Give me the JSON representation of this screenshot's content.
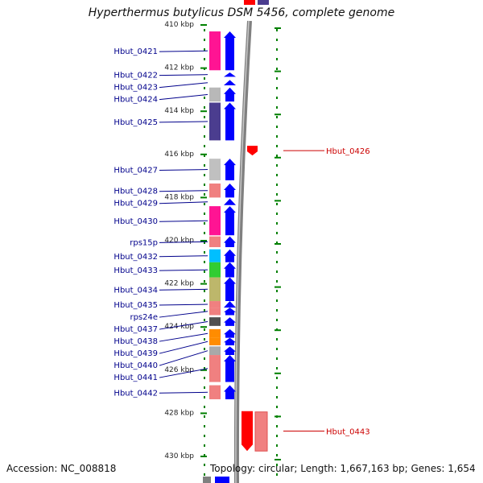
{
  "title": "Hyperthermus butylicus DSM 5456, complete genome",
  "footer": {
    "accession": "Accession: NC_008818",
    "topology": "Topology: circular; Length: 1,667,163 bp; Genes: 1,654"
  },
  "colors": {
    "forward_arrow": "#0000ff",
    "reverse_gene": "#ff0000",
    "label_forward": "#00008b",
    "label_reverse": "#cc0000",
    "tick_green": "#008000",
    "backbone": "#808080"
  },
  "scale": {
    "start_kbp": 410,
    "end_kbp": 430,
    "ticks": [
      {
        "kbp": 410,
        "label": "410 kbp"
      },
      {
        "kbp": 412,
        "label": "412 kbp"
      },
      {
        "kbp": 414,
        "label": "414 kbp"
      },
      {
        "kbp": 416,
        "label": "416 kbp"
      },
      {
        "kbp": 418,
        "label": "418 kbp"
      },
      {
        "kbp": 420,
        "label": "420 kbp"
      },
      {
        "kbp": 422,
        "label": "422 kbp"
      },
      {
        "kbp": 424,
        "label": "424 kbp"
      },
      {
        "kbp": 426,
        "label": "426 kbp"
      },
      {
        "kbp": 428,
        "label": "428 kbp"
      },
      {
        "kbp": 430,
        "label": "430 kbp"
      }
    ]
  },
  "genes": [
    {
      "name": "Hbut_0421",
      "start_kbp": 410.3,
      "end_kbp": 412.1,
      "strand": "+",
      "color": "#ff1493"
    },
    {
      "name": "Hbut_0422",
      "start_kbp": 412.2,
      "end_kbp": 412.4,
      "strand": "+",
      "color": "#ffffff"
    },
    {
      "name": "Hbut_0423",
      "start_kbp": 412.55,
      "end_kbp": 412.8,
      "strand": "+",
      "color": "#ffffff"
    },
    {
      "name": "Hbut_0424",
      "start_kbp": 412.9,
      "end_kbp": 413.55,
      "strand": "+",
      "color": "#b8b8b8"
    },
    {
      "name": "Hbut_0425",
      "start_kbp": 413.6,
      "end_kbp": 415.35,
      "strand": "+",
      "color": "#4b3d8f"
    },
    {
      "name": "Hbut_0426",
      "start_kbp": 415.6,
      "end_kbp": 416.05,
      "strand": "-",
      "color": "#ff0000"
    },
    {
      "name": "Hbut_0427",
      "start_kbp": 416.2,
      "end_kbp": 417.2,
      "strand": "+",
      "color": "#c0c0c0"
    },
    {
      "name": "Hbut_0428",
      "start_kbp": 417.35,
      "end_kbp": 418.0,
      "strand": "+",
      "color": "#f08080"
    },
    {
      "name": "Hbut_0429",
      "start_kbp": 418.05,
      "end_kbp": 418.35,
      "strand": "+",
      "color": "#ffffff"
    },
    {
      "name": "Hbut_0430",
      "start_kbp": 418.4,
      "end_kbp": 419.75,
      "strand": "+",
      "color": "#ff1493"
    },
    {
      "name": "rps15p",
      "start_kbp": 419.8,
      "end_kbp": 420.3,
      "strand": "+",
      "color": "#f08080"
    },
    {
      "name": "Hbut_0432",
      "start_kbp": 420.4,
      "end_kbp": 421.0,
      "strand": "+",
      "color": "#00bfff"
    },
    {
      "name": "Hbut_0433",
      "start_kbp": 421.0,
      "end_kbp": 421.7,
      "strand": "+",
      "color": "#32cd32"
    },
    {
      "name": "Hbut_0434",
      "start_kbp": 421.7,
      "end_kbp": 422.8,
      "strand": "+",
      "color": "#bdb76b"
    },
    {
      "name": "Hbut_0435",
      "start_kbp": 422.8,
      "end_kbp": 423.1,
      "strand": "+",
      "color": "#f08080"
    },
    {
      "name": "rps24e",
      "start_kbp": 423.1,
      "end_kbp": 423.45,
      "strand": "+",
      "color": "#f08080"
    },
    {
      "name": "Hbut_0437",
      "start_kbp": 423.55,
      "end_kbp": 423.95,
      "strand": "+",
      "color": "#505050"
    },
    {
      "name": "Hbut_0438",
      "start_kbp": 424.1,
      "end_kbp": 424.5,
      "strand": "+",
      "color": "#ff8c00"
    },
    {
      "name": "Hbut_0439",
      "start_kbp": 424.5,
      "end_kbp": 424.85,
      "strand": "+",
      "color": "#ff8c00"
    },
    {
      "name": "Hbut_0440",
      "start_kbp": 424.9,
      "end_kbp": 425.3,
      "strand": "+",
      "color": "#a9a9a9"
    },
    {
      "name": "Hbut_0441",
      "start_kbp": 425.3,
      "end_kbp": 426.55,
      "strand": "+",
      "color": "#f08080"
    },
    {
      "name": "Hbut_0442",
      "start_kbp": 426.7,
      "end_kbp": 427.35,
      "strand": "+",
      "color": "#f08080"
    },
    {
      "name": "Hbut_0443",
      "start_kbp": 427.9,
      "end_kbp": 429.75,
      "strand": "-",
      "color": "#ff0000"
    }
  ]
}
